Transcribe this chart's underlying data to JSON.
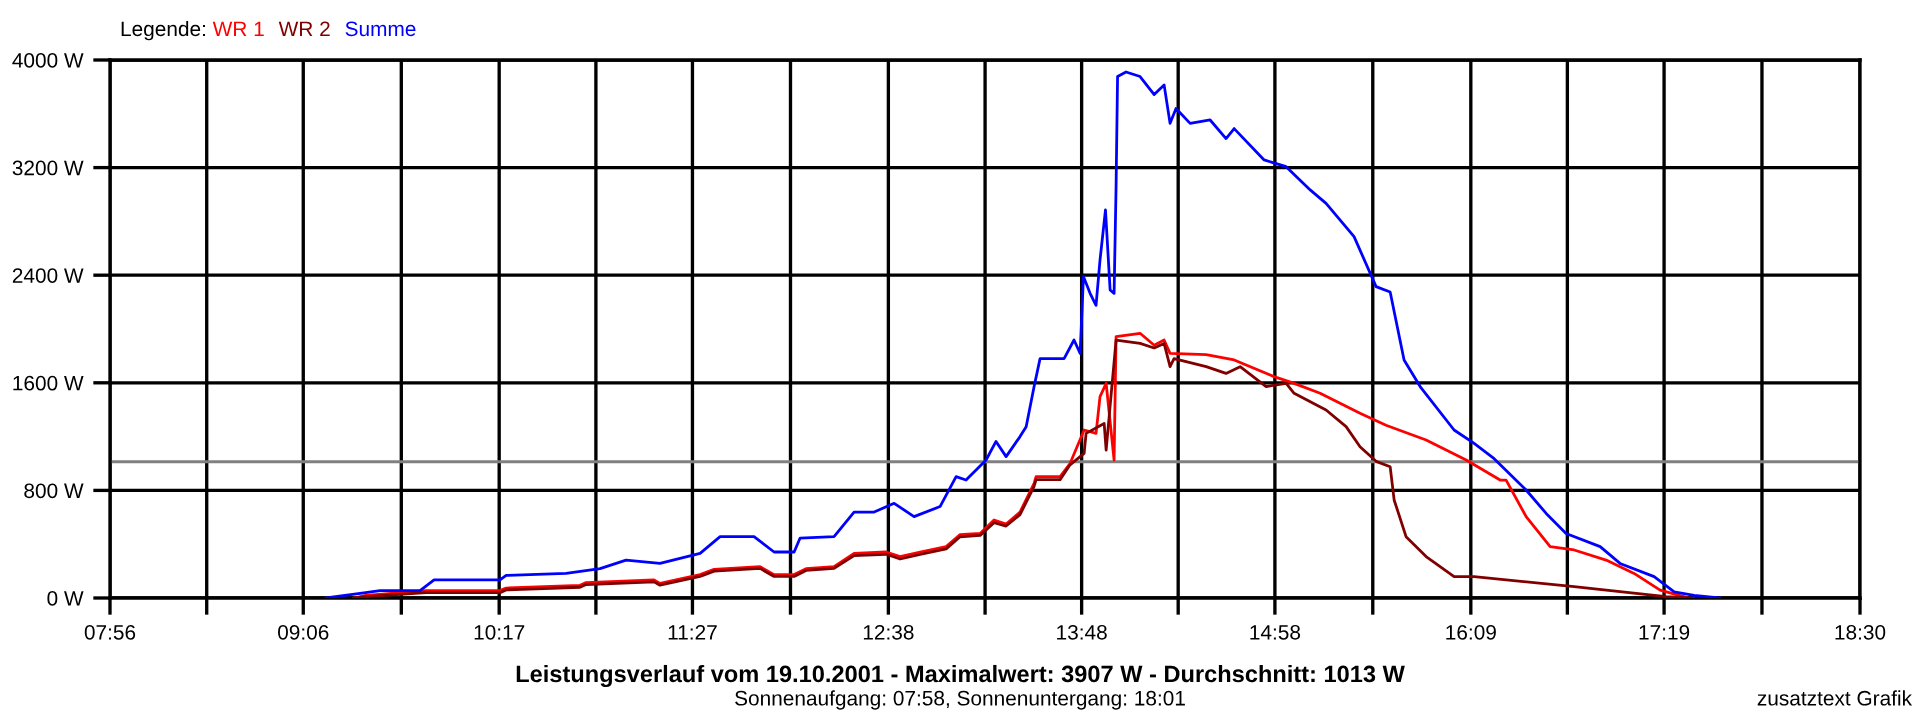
{
  "chart_data": {
    "type": "line",
    "title": "Leistungsverlauf vom 19.10.2001 - Maximalwert: 3907 W - Durchschnitt: 1013 W",
    "subtitle": "Sonnenaufgang: 07:58, Sonnenuntergang: 18:01",
    "legend_title": "Legende:",
    "legend": "top left",
    "annotations": [
      "zusatztext Grafik"
    ],
    "series": [
      {
        "name": "WR 1",
        "color": "#ff0000",
        "x": [
          9.407,
          9.479,
          9.842,
          10.288,
          10.325,
          10.771,
          10.808,
          11.218,
          11.254,
          11.496,
          11.581,
          11.858,
          11.943,
          12.064,
          12.136,
          12.305,
          12.426,
          12.619,
          12.704,
          12.825,
          12.982,
          13.066,
          13.187,
          13.271,
          13.344,
          13.428,
          13.513,
          13.525,
          13.67,
          13.73,
          13.815,
          13.887,
          13.911,
          13.948,
          13.996,
          14.008,
          14.153,
          14.238,
          14.298,
          14.334,
          14.552,
          14.721,
          14.962,
          15.083,
          15.24,
          15.481,
          15.638,
          15.88,
          16.122,
          16.327,
          16.363,
          16.484,
          16.629,
          16.774,
          16.967,
          17.136,
          17.293,
          17.45
        ],
        "values": [
          0,
          19,
          55,
          55,
          74,
          94,
          115,
          134,
          109,
          174,
          213,
          233,
          174,
          174,
          218,
          233,
          332,
          342,
          308,
          342,
          382,
          471,
          480,
          580,
          550,
          639,
          852,
          902,
          902,
          1000,
          1249,
          1224,
          1497,
          1596,
          1026,
          1943,
          1968,
          1879,
          1918,
          1819,
          1810,
          1770,
          1646,
          1596,
          1522,
          1373,
          1284,
          1175,
          1026,
          877,
          877,
          605,
          382,
          357,
          282,
          183,
          59,
          5
        ]
      },
      {
        "name": "WR 2",
        "color": "#800000",
        "x": [
          9.407,
          9.479,
          9.842,
          10.288,
          10.325,
          10.771,
          10.808,
          11.218,
          11.254,
          11.496,
          11.581,
          11.858,
          11.943,
          12.064,
          12.136,
          12.305,
          12.426,
          12.619,
          12.704,
          12.825,
          12.982,
          13.066,
          13.187,
          13.271,
          13.344,
          13.428,
          13.513,
          13.525,
          13.67,
          13.73,
          13.815,
          13.827,
          13.936,
          13.948,
          13.972,
          14.008,
          14.153,
          14.238,
          14.298,
          14.334,
          14.358,
          14.552,
          14.672,
          14.757,
          14.914,
          15.035,
          15.083,
          15.276,
          15.397,
          15.481,
          15.578,
          15.663,
          15.687,
          15.759,
          15.88,
          16.049,
          16.17,
          16.774,
          17.329,
          17.498
        ],
        "values": [
          0,
          10,
          40,
          40,
          60,
          80,
          100,
          120,
          95,
          160,
          200,
          220,
          160,
          160,
          205,
          220,
          315,
          325,
          290,
          325,
          365,
          455,
          465,
          560,
          535,
          620,
          830,
          880,
          880,
          990,
          1075,
          1224,
          1298,
          1100,
          1428,
          1918,
          1893,
          1859,
          1893,
          1720,
          1780,
          1720,
          1670,
          1720,
          1572,
          1596,
          1522,
          1398,
          1274,
          1125,
          1016,
          976,
          729,
          456,
          308,
          159,
          159,
          85,
          10,
          0
        ]
      },
      {
        "name": "Summe",
        "color": "#0000ff",
        "x": [
          9.238,
          9.443,
          9.564,
          9.805,
          9.89,
          10.288,
          10.325,
          10.687,
          10.892,
          11.049,
          11.254,
          11.496,
          11.617,
          11.822,
          11.943,
          12.064,
          12.1,
          12.305,
          12.426,
          12.547,
          12.668,
          12.788,
          12.945,
          13.042,
          13.102,
          13.223,
          13.283,
          13.344,
          13.428,
          13.465,
          13.513,
          13.549,
          13.694,
          13.754,
          13.791,
          13.811,
          13.851,
          13.887,
          13.911,
          13.944,
          13.972,
          13.996,
          14.008,
          14.017,
          14.068,
          14.153,
          14.238,
          14.298,
          14.334,
          14.37,
          14.455,
          14.576,
          14.672,
          14.721,
          14.902,
          15.035,
          15.18,
          15.276,
          15.445,
          15.578,
          15.663,
          15.747,
          15.844,
          16.049,
          16.17,
          16.291,
          16.484,
          16.605,
          16.725,
          16.931,
          17.051,
          17.257,
          17.378,
          17.498,
          17.655
        ],
        "values": [
          0,
          35,
          55,
          55,
          134,
          134,
          168,
          183,
          218,
          282,
          257,
          332,
          456,
          456,
          342,
          342,
          446,
          456,
          639,
          639,
          704,
          605,
          680,
          902,
          877,
          1026,
          1164,
          1051,
          1200,
          1274,
          1572,
          1780,
          1780,
          1918,
          1819,
          2390,
          2265,
          2176,
          2513,
          2885,
          2290,
          2265,
          3059,
          3877,
          3911,
          3877,
          3743,
          3815,
          3529,
          3639,
          3529,
          3554,
          3416,
          3490,
          3257,
          3207,
          3034,
          2934,
          2687,
          2315,
          2275,
          1770,
          1572,
          1249,
          1149,
          1036,
          803,
          629,
          480,
          382,
          257,
          159,
          45,
          19,
          0
        ]
      }
    ],
    "ref_lines": [
      {
        "axis": "y",
        "value": 1013,
        "color": "#808080"
      }
    ],
    "xlim": [
      7.933,
      18.5
    ],
    "xticks": [
      {
        "value": 7.933,
        "label": "07:56"
      },
      {
        "value": 8.517,
        "label": null
      },
      {
        "value": 9.1,
        "label": "09:06"
      },
      {
        "value": 9.692,
        "label": null
      },
      {
        "value": 10.283,
        "label": "10:17"
      },
      {
        "value": 10.867,
        "label": null
      },
      {
        "value": 11.45,
        "label": "11:27"
      },
      {
        "value": 12.042,
        "label": null
      },
      {
        "value": 12.633,
        "label": "12:38"
      },
      {
        "value": 13.217,
        "label": null
      },
      {
        "value": 13.8,
        "label": "13:48"
      },
      {
        "value": 14.383,
        "label": null
      },
      {
        "value": 14.967,
        "label": "14:58"
      },
      {
        "value": 15.558,
        "label": null
      },
      {
        "value": 16.15,
        "label": "16:09"
      },
      {
        "value": 16.733,
        "label": null
      },
      {
        "value": 17.317,
        "label": "17:19"
      },
      {
        "value": 17.908,
        "label": null
      },
      {
        "value": 18.5,
        "label": "18:30"
      }
    ],
    "ylim": [
      0,
      4000
    ],
    "yticks": [
      {
        "value": 0,
        "label": "0 W"
      },
      {
        "value": 800,
        "label": "800 W"
      },
      {
        "value": 1600,
        "label": "1600 W"
      },
      {
        "value": 2400,
        "label": "2400 W"
      },
      {
        "value": 3200,
        "label": "3200 W"
      },
      {
        "value": 4000,
        "label": "4000 W"
      }
    ],
    "grid": true
  }
}
